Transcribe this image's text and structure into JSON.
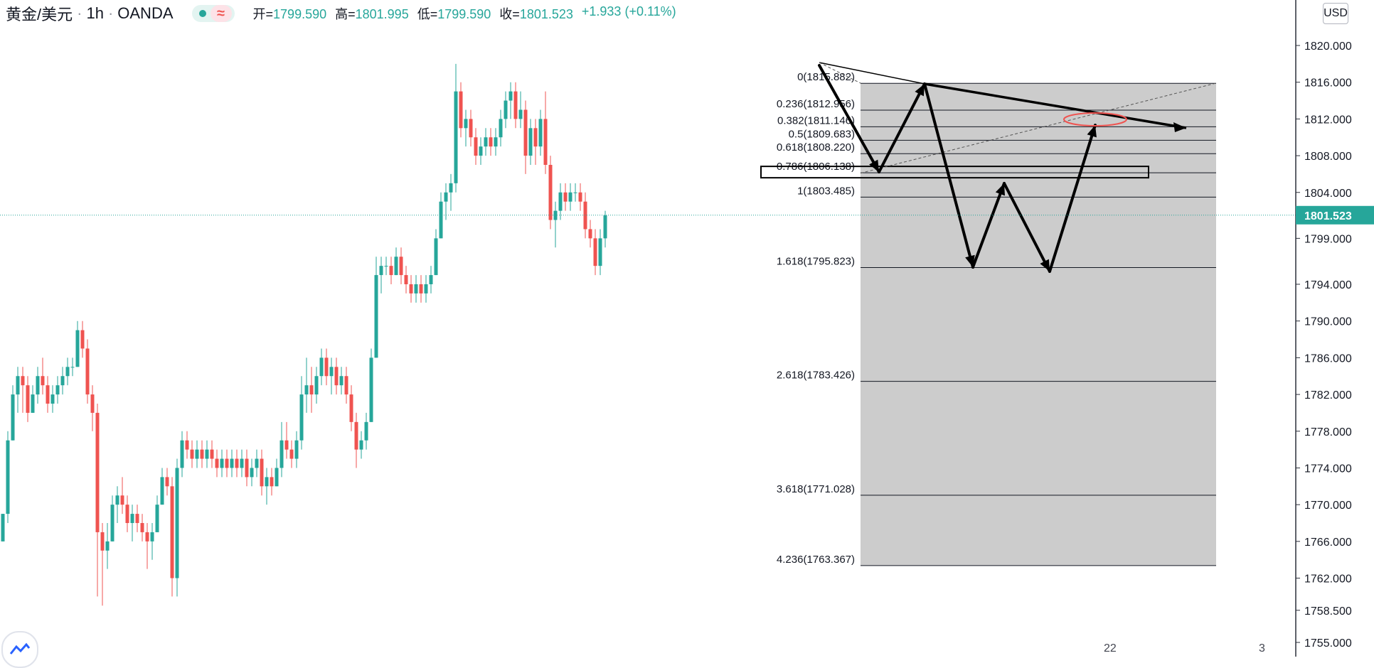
{
  "header": {
    "symbol": "黄金/美元",
    "sep1": "·",
    "interval": "1h",
    "sep2": "·",
    "broker": "OANDA",
    "ohlc": [
      {
        "k": "开=",
        "v": "1799.590"
      },
      {
        "k": "高=",
        "v": "1801.995"
      },
      {
        "k": "低=",
        "v": "1799.590"
      },
      {
        "k": "收=",
        "v": "1801.523"
      },
      {
        "k": "",
        "v": "+1.933 (+0.11%)"
      }
    ]
  },
  "currency_button": "USD",
  "bottom_badges": {
    "left": "22",
    "right": "3"
  },
  "colors": {
    "up": "#26a69a",
    "down": "#ef5350",
    "fib_zone": "#cccccc",
    "grid_line": "#131722",
    "price_tag_bg": "#26a69a",
    "ellipse": "#ef5350"
  },
  "chart_data": {
    "type": "candlestick",
    "symbol": "黄金/美元",
    "interval": "1h",
    "ylim": [
      1754,
      1823
    ],
    "y_ticks": [
      "1820.000",
      "1816.000",
      "1812.000",
      "1808.000",
      "1804.000",
      "1799.000",
      "1794.000",
      "1790.000",
      "1786.000",
      "1782.000",
      "1778.000",
      "1774.000",
      "1770.000",
      "1766.000",
      "1762.000",
      "1758.500",
      "1755.000"
    ],
    "last_price": 1801.523,
    "last_price_label": "1801.523",
    "candles": [
      [
        1766,
        1769,
        1766,
        1769
      ],
      [
        1769,
        1778,
        1768,
        1777
      ],
      [
        1777,
        1783,
        1777,
        1782
      ],
      [
        1782,
        1785,
        1780,
        1784
      ],
      [
        1784,
        1785,
        1780,
        1783
      ],
      [
        1783,
        1784,
        1779,
        1780
      ],
      [
        1780,
        1783,
        1780,
        1782
      ],
      [
        1782,
        1785,
        1781,
        1784
      ],
      [
        1784,
        1786,
        1782,
        1783
      ],
      [
        1783,
        1784,
        1780,
        1781
      ],
      [
        1781,
        1783,
        1780,
        1782
      ],
      [
        1782,
        1784,
        1781,
        1783
      ],
      [
        1783,
        1785,
        1782,
        1784
      ],
      [
        1784,
        1786,
        1783,
        1785
      ],
      [
        1785,
        1786,
        1784,
        1785
      ],
      [
        1785,
        1790,
        1785,
        1789
      ],
      [
        1789,
        1790,
        1786,
        1787
      ],
      [
        1787,
        1788,
        1781,
        1782
      ],
      [
        1782,
        1783,
        1778,
        1780
      ],
      [
        1780,
        1781,
        1760,
        1767
      ],
      [
        1767,
        1768,
        1759,
        1765
      ],
      [
        1765,
        1768,
        1763,
        1766
      ],
      [
        1766,
        1771,
        1766,
        1770
      ],
      [
        1770,
        1772,
        1768,
        1771
      ],
      [
        1771,
        1773,
        1769,
        1770
      ],
      [
        1770,
        1771,
        1767,
        1768
      ],
      [
        1768,
        1770,
        1766,
        1769
      ],
      [
        1769,
        1770,
        1767,
        1768
      ],
      [
        1768,
        1769,
        1766,
        1767
      ],
      [
        1767,
        1768,
        1763,
        1766
      ],
      [
        1766,
        1768,
        1764,
        1767
      ],
      [
        1767,
        1771,
        1767,
        1770
      ],
      [
        1770,
        1774,
        1770,
        1773
      ],
      [
        1773,
        1774,
        1771,
        1772
      ],
      [
        1772,
        1773,
        1760,
        1762
      ],
      [
        1762,
        1775,
        1760,
        1774
      ],
      [
        1774,
        1778,
        1773,
        1777
      ],
      [
        1777,
        1778,
        1775,
        1776
      ],
      [
        1776,
        1777,
        1774,
        1775
      ],
      [
        1775,
        1777,
        1774,
        1776
      ],
      [
        1776,
        1777,
        1774,
        1775
      ],
      [
        1775,
        1777,
        1774,
        1776
      ],
      [
        1776,
        1777,
        1774,
        1775
      ],
      [
        1775,
        1776,
        1773,
        1774
      ],
      [
        1774,
        1776,
        1773,
        1775
      ],
      [
        1775,
        1776,
        1773,
        1774
      ],
      [
        1774,
        1776,
        1773,
        1775
      ],
      [
        1775,
        1776,
        1773,
        1774
      ],
      [
        1774,
        1776,
        1773,
        1775
      ],
      [
        1775,
        1776,
        1772,
        1773
      ],
      [
        1773,
        1775,
        1772,
        1774
      ],
      [
        1774,
        1776,
        1773,
        1775
      ],
      [
        1775,
        1776,
        1771,
        1772
      ],
      [
        1772,
        1774,
        1770,
        1773
      ],
      [
        1773,
        1774,
        1771,
        1772
      ],
      [
        1772,
        1775,
        1772,
        1774
      ],
      [
        1774,
        1779,
        1773,
        1777
      ],
      [
        1777,
        1779,
        1775,
        1776
      ],
      [
        1776,
        1777,
        1774,
        1775
      ],
      [
        1775,
        1778,
        1774,
        1777
      ],
      [
        1777,
        1784,
        1776,
        1782
      ],
      [
        1782,
        1786,
        1780,
        1783
      ],
      [
        1783,
        1785,
        1780,
        1782
      ],
      [
        1782,
        1785,
        1781,
        1784
      ],
      [
        1784,
        1787,
        1783,
        1786
      ],
      [
        1786,
        1787,
        1783,
        1784
      ],
      [
        1784,
        1786,
        1782,
        1785
      ],
      [
        1785,
        1786,
        1782,
        1783
      ],
      [
        1783,
        1785,
        1782,
        1784
      ],
      [
        1784,
        1785,
        1781,
        1782
      ],
      [
        1782,
        1783,
        1778,
        1779
      ],
      [
        1779,
        1780,
        1774,
        1776
      ],
      [
        1776,
        1778,
        1775,
        1777
      ],
      [
        1777,
        1780,
        1776,
        1779
      ],
      [
        1779,
        1787,
        1779,
        1786
      ],
      [
        1786,
        1797,
        1786,
        1795
      ],
      [
        1795,
        1797,
        1793,
        1796
      ],
      [
        1796,
        1797,
        1795,
        1796
      ],
      [
        1796,
        1797,
        1794,
        1795
      ],
      [
        1795,
        1798,
        1795,
        1797
      ],
      [
        1797,
        1798,
        1794,
        1795
      ],
      [
        1795,
        1796,
        1793,
        1794
      ],
      [
        1794,
        1795,
        1792,
        1793
      ],
      [
        1793,
        1795,
        1792,
        1794
      ],
      [
        1794,
        1795,
        1792,
        1793
      ],
      [
        1793,
        1795,
        1792,
        1794
      ],
      [
        1794,
        1796,
        1793,
        1795
      ],
      [
        1795,
        1800,
        1795,
        1799
      ],
      [
        1799,
        1804,
        1799,
        1803
      ],
      [
        1803,
        1805,
        1801,
        1804
      ],
      [
        1804,
        1806,
        1802,
        1805
      ],
      [
        1805,
        1818,
        1804,
        1815
      ],
      [
        1815,
        1816,
        1810,
        1811
      ],
      [
        1811,
        1813,
        1809,
        1812
      ],
      [
        1812,
        1813,
        1809,
        1810
      ],
      [
        1810,
        1811,
        1807,
        1808
      ],
      [
        1808,
        1810,
        1807,
        1809
      ],
      [
        1809,
        1811,
        1808,
        1810
      ],
      [
        1810,
        1811,
        1808,
        1809
      ],
      [
        1809,
        1811,
        1808,
        1810
      ],
      [
        1810,
        1813,
        1809,
        1812
      ],
      [
        1812,
        1815,
        1811,
        1814
      ],
      [
        1814,
        1816,
        1812,
        1815
      ],
      [
        1815,
        1816,
        1811,
        1812
      ],
      [
        1812,
        1815,
        1811,
        1813
      ],
      [
        1813,
        1814,
        1806,
        1808
      ],
      [
        1808,
        1812,
        1807,
        1811
      ],
      [
        1811,
        1812,
        1807,
        1809
      ],
      [
        1809,
        1813,
        1808,
        1812
      ],
      [
        1812,
        1815,
        1806,
        1807
      ],
      [
        1807,
        1808,
        1800,
        1801
      ],
      [
        1801,
        1803,
        1798,
        1802
      ],
      [
        1802,
        1805,
        1801,
        1804
      ],
      [
        1804,
        1805,
        1802,
        1803
      ],
      [
        1803,
        1805,
        1802,
        1804
      ],
      [
        1804,
        1805,
        1803,
        1804
      ],
      [
        1804,
        1805,
        1802,
        1803
      ],
      [
        1803,
        1804,
        1799,
        1800
      ],
      [
        1800,
        1801,
        1798,
        1799
      ],
      [
        1799,
        1800,
        1795,
        1796
      ],
      [
        1796,
        1800,
        1795,
        1799
      ],
      [
        1799,
        1802,
        1798,
        1801.5
      ]
    ],
    "fibonacci": [
      {
        "label": "0(1815.882)",
        "value": 1815.882
      },
      {
        "label": "0.236(1812.956)",
        "value": 1812.956
      },
      {
        "label": "0.382(1811.146)",
        "value": 1811.146
      },
      {
        "label": "0.5(1809.683)",
        "value": 1809.683
      },
      {
        "label": "0.618(1808.220)",
        "value": 1808.22
      },
      {
        "label": "0.786(1806.138)",
        "value": 1806.138
      },
      {
        "label": "1(1803.485)",
        "value": 1803.485
      },
      {
        "label": "1.618(1795.823)",
        "value": 1795.823
      },
      {
        "label": "2.618(1783.426)",
        "value": 1783.426
      },
      {
        "label": "3.618(1771.028)",
        "value": 1771.028
      },
      {
        "label": "4.236(1763.367)",
        "value": 1763.367
      }
    ]
  }
}
